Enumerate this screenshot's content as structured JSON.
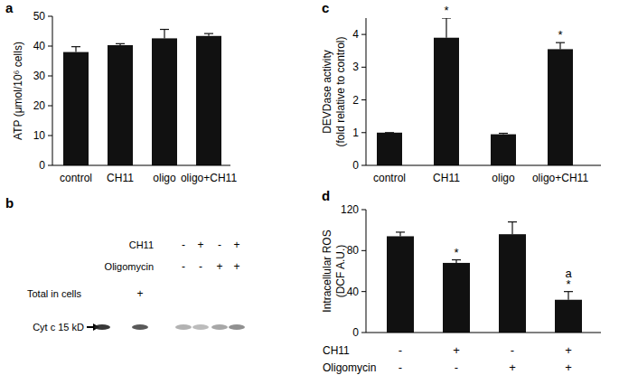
{
  "chart_data": [
    {
      "type": "bar",
      "title": "a",
      "ylabel": [
        "ATP (μmol/10⁶ cells)"
      ],
      "categories": [
        "control",
        "CH11",
        "oligo",
        "oligo+CH11"
      ],
      "values": [
        38,
        40.3,
        42.6,
        43.4
      ],
      "errors": [
        1.8,
        0.5,
        3,
        0.8
      ],
      "color": "#111111",
      "ylim": [
        0,
        50
      ],
      "yticks": [
        0,
        10,
        20,
        30,
        40,
        50
      ],
      "grid": false
    },
    {
      "type": "bar",
      "title": "c",
      "ylabel": [
        "DEVDase activity",
        "(fold relative to control)"
      ],
      "categories": [
        "control",
        "CH11",
        "oligo",
        "oligo+CH11"
      ],
      "values": [
        1,
        3.9,
        0.95,
        3.55
      ],
      "errors": [
        0,
        0.6,
        0.03,
        0.2
      ],
      "annotations": [
        null,
        [
          "*"
        ],
        null,
        [
          "*"
        ]
      ],
      "color": "#111111",
      "ylim": [
        0,
        4.5
      ],
      "yticks": [
        0,
        1,
        2,
        3,
        4
      ],
      "grid": false
    },
    {
      "type": "bar",
      "title": "d",
      "ylabel": [
        "Intracellular ROS",
        "(DCF A.U.)"
      ],
      "categories": [
        null,
        null,
        null,
        null
      ],
      "conditions": [
        {
          "name": "CH11",
          "signs": [
            "-",
            "+",
            "-",
            "+"
          ]
        },
        {
          "name": "Oligomycin",
          "signs": [
            "-",
            "-",
            "+",
            "+"
          ]
        }
      ],
      "values": [
        94,
        68,
        96,
        32
      ],
      "errors": [
        4,
        3,
        12,
        8
      ],
      "annotations": [
        null,
        [
          "*"
        ],
        null,
        [
          "a",
          "*"
        ]
      ],
      "color": "#111111",
      "ylim": [
        0,
        120
      ],
      "yticks": [
        0,
        40,
        80,
        120
      ],
      "grid": false
    }
  ],
  "blot": {
    "title": "b",
    "rows": [
      {
        "name": "CH11",
        "signs": [
          null,
          null,
          "-",
          "+",
          "-",
          "+"
        ]
      },
      {
        "name": "Oligomycin",
        "signs": [
          null,
          null,
          "-",
          "-",
          "+",
          "+"
        ]
      },
      {
        "name": "Total in cells",
        "signs": [
          null,
          "+",
          null,
          null,
          null,
          null
        ]
      }
    ],
    "band_label": "Cyt c 15 kD",
    "band_intensity": [
      0.9,
      0.75,
      0.35,
      0.3,
      0.4,
      0.5
    ]
  }
}
